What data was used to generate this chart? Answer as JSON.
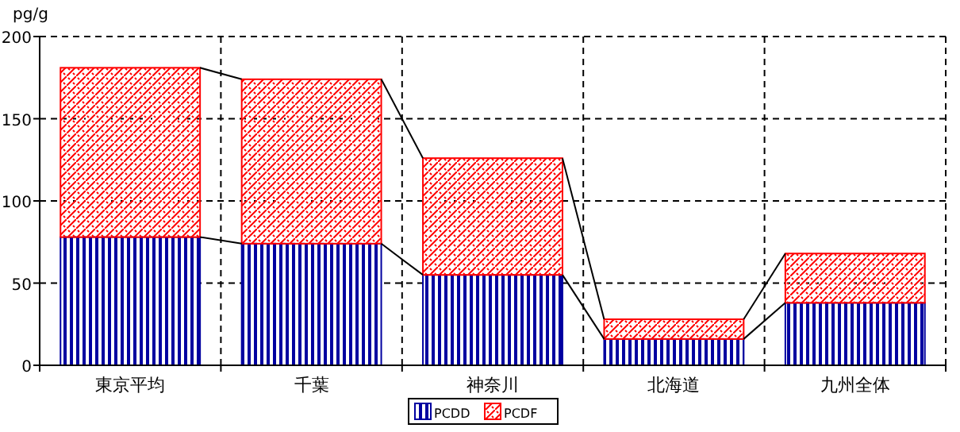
{
  "chart_data": {
    "type": "bar",
    "stacked": true,
    "ylabel": "pg/g",
    "categories": [
      "東京平均",
      "千葉",
      "神奈川",
      "北海道",
      "九州全体"
    ],
    "series": [
      {
        "name": "PCDD",
        "color": "#0000a0",
        "values": [
          78,
          74,
          55,
          16,
          38
        ]
      },
      {
        "name": "PCDF",
        "color": "#ff0000",
        "values": [
          103,
          100,
          71,
          12,
          30
        ]
      }
    ],
    "ylim": [
      0,
      200
    ],
    "yticks": [
      0,
      50,
      100,
      150,
      200
    ],
    "grid": true,
    "legend": "bottom"
  }
}
